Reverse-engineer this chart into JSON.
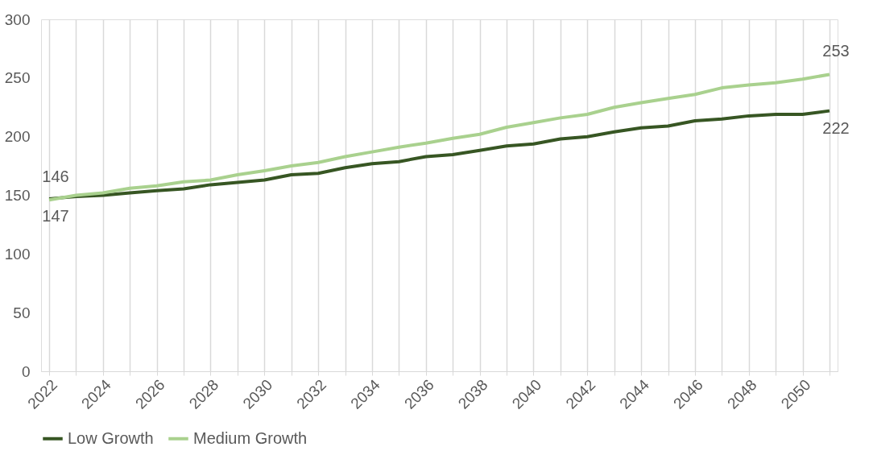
{
  "chart_data": {
    "type": "line",
    "categories": [
      "2022",
      null,
      "2024",
      null,
      "2026",
      null,
      "2028",
      null,
      "2030",
      null,
      "2032",
      null,
      "2034",
      null,
      "2036",
      null,
      "2038",
      null,
      "2040",
      null,
      "2042",
      null,
      "2044",
      null,
      "2046",
      null,
      "2048",
      null,
      "2050",
      null
    ],
    "series": [
      {
        "name": "Low Growth",
        "color": "#375623",
        "values": [
          147,
          149,
          150,
          152,
          154,
          155.5,
          159,
          161,
          163,
          167.5,
          168.7,
          173.5,
          177,
          178.7,
          183,
          184.7,
          188.3,
          192,
          193.8,
          198,
          200,
          204,
          207.5,
          209,
          213.5,
          215,
          217.7,
          219,
          219,
          222
        ],
        "value_labels": [
          "147",
          null,
          null,
          null,
          null,
          null,
          null,
          null,
          null,
          null,
          null,
          null,
          null,
          null,
          null,
          null,
          null,
          null,
          null,
          null,
          null,
          null,
          null,
          null,
          null,
          null,
          null,
          null,
          null,
          "222"
        ]
      },
      {
        "name": "Medium Growth",
        "color": "#a9d18e",
        "values": [
          146,
          150,
          152,
          156,
          158,
          161.5,
          163,
          167.5,
          171,
          175,
          178,
          183,
          187,
          191,
          194.5,
          198.6,
          202,
          208,
          212,
          216,
          219,
          225,
          229,
          232.5,
          236,
          241.6,
          244,
          246,
          249,
          253
        ],
        "value_labels": [
          "146",
          null,
          null,
          null,
          null,
          null,
          null,
          null,
          null,
          null,
          null,
          null,
          null,
          null,
          null,
          null,
          null,
          null,
          null,
          null,
          null,
          null,
          null,
          null,
          null,
          null,
          null,
          null,
          null,
          "253"
        ]
      }
    ],
    "ylim": [
      0,
      300
    ],
    "yticks": [
      0,
      50,
      100,
      150,
      200,
      250,
      300
    ],
    "grid": "x",
    "legend": "bottom",
    "marker": "none",
    "line_style": "solid"
  }
}
